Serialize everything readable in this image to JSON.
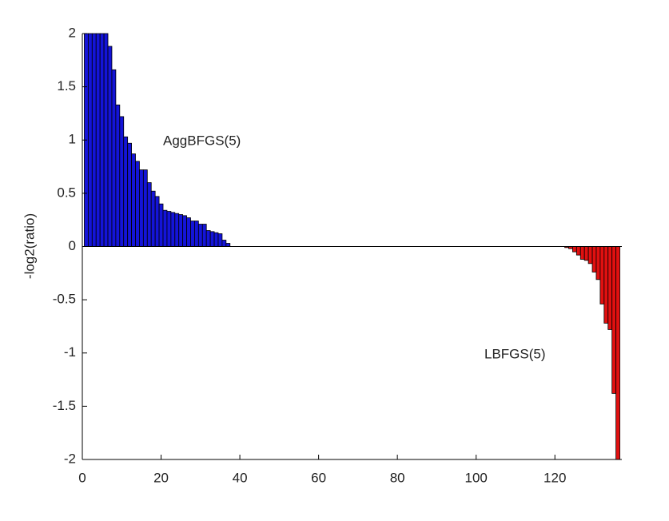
{
  "chart_data": {
    "type": "bar",
    "y_label": "-log2(ratio)",
    "annotations": [
      "AggBFGS(5)",
      "LBFGS(5)"
    ],
    "xlim": [
      0,
      137
    ],
    "ylim": [
      -2,
      2
    ],
    "xticks": [
      0,
      20,
      40,
      60,
      80,
      100,
      120
    ],
    "yticks": [
      -2,
      -1.5,
      -1,
      -0.5,
      0,
      0.5,
      1,
      1.5,
      2
    ],
    "series": [
      {
        "color": "#1414d8",
        "x": [
          1,
          2,
          3,
          4,
          5,
          6,
          7,
          8,
          9,
          10,
          11,
          12,
          13,
          14,
          15,
          16,
          17,
          18,
          19,
          20,
          21,
          22,
          23,
          24,
          25,
          26,
          27,
          28,
          29,
          30,
          31,
          32,
          33,
          34,
          35,
          36,
          37
        ],
        "values": [
          2,
          2,
          2,
          2,
          2,
          2,
          1.88,
          1.66,
          1.33,
          1.22,
          1.03,
          0.97,
          0.87,
          0.8,
          0.72,
          0.72,
          0.6,
          0.52,
          0.47,
          0.4,
          0.34,
          0.33,
          0.32,
          0.31,
          0.3,
          0.29,
          0.27,
          0.24,
          0.24,
          0.21,
          0.21,
          0.15,
          0.14,
          0.13,
          0.12,
          0.06,
          0.03
        ]
      },
      {
        "color": "#e01010",
        "x": [
          123,
          124,
          125,
          126,
          127,
          128,
          129,
          130,
          131,
          132,
          133,
          134,
          135,
          136
        ],
        "values": [
          -0.01,
          -0.02,
          -0.05,
          -0.08,
          -0.12,
          -0.13,
          -0.16,
          -0.24,
          -0.31,
          -0.54,
          -0.72,
          -0.78,
          -1.38,
          -2
        ]
      }
    ]
  }
}
